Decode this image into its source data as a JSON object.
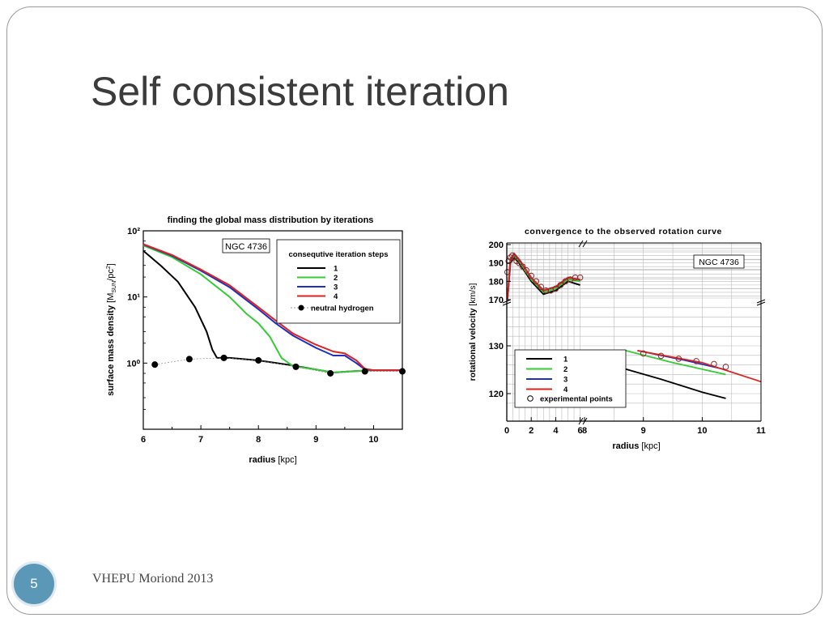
{
  "slide": {
    "title": "Self consistent iteration",
    "footer": "VHEPU Moriond 2013",
    "page_number": "5",
    "accent_color": "#5b98b8"
  },
  "chart_data": [
    {
      "type": "line",
      "title": "finding the global mass distribution by iterations",
      "xlabel": "radius [kpc]",
      "ylabel": "surface mass density [M_SUN/pc^2]",
      "annotation": "NGC 4736",
      "legend_title": "consequtive iteration steps",
      "legend_position": "top-right",
      "xlim": [
        6,
        10.5
      ],
      "ylim": [
        0.1,
        100
      ],
      "yscale": "log",
      "x_ticks": [
        "6",
        "7",
        "8",
        "9",
        "10"
      ],
      "y_ticks": [
        "10⁰",
        "10¹",
        "10²"
      ],
      "series": [
        {
          "name": "1",
          "color": "#000000",
          "x": [
            6.0,
            6.3,
            6.6,
            6.9,
            7.1,
            7.2,
            7.28,
            7.5,
            8.0,
            8.5,
            9.0,
            9.3,
            9.6,
            10.0,
            10.5
          ],
          "y": [
            50,
            30,
            17,
            7,
            3,
            1.6,
            1.2,
            1.2,
            1.1,
            0.95,
            0.8,
            0.72,
            0.75,
            0.78,
            0.78
          ]
        },
        {
          "name": "2",
          "color": "#33cc33",
          "x": [
            6.0,
            6.5,
            7.0,
            7.5,
            7.8,
            8.0,
            8.2,
            8.4,
            8.6,
            9.0,
            9.3,
            9.6,
            10.0,
            10.5
          ],
          "y": [
            60,
            40,
            22,
            10,
            5.5,
            4,
            2.5,
            1.2,
            0.9,
            0.8,
            0.72,
            0.75,
            0.78,
            0.78
          ]
        },
        {
          "name": "3",
          "color": "#1f2fbf",
          "x": [
            6.0,
            6.5,
            7.0,
            7.5,
            8.0,
            8.3,
            8.6,
            9.0,
            9.3,
            9.5,
            9.7,
            9.85,
            10.0,
            10.5
          ],
          "y": [
            62,
            42,
            25,
            14,
            6.5,
            4,
            2.6,
            1.7,
            1.3,
            1.3,
            1.0,
            0.8,
            0.78,
            0.78
          ]
        },
        {
          "name": "4",
          "color": "#dd2222",
          "x": [
            6.0,
            6.5,
            7.0,
            7.5,
            8.0,
            8.3,
            8.6,
            9.0,
            9.3,
            9.5,
            9.7,
            9.85,
            10.0,
            10.5
          ],
          "y": [
            63,
            43,
            26,
            15,
            7,
            4.4,
            2.8,
            1.9,
            1.5,
            1.4,
            1.1,
            0.82,
            0.78,
            0.78
          ]
        }
      ],
      "points": {
        "name": "neutral hydrogen",
        "color": "#000000",
        "x": [
          6.2,
          6.8,
          7.4,
          8.0,
          8.65,
          9.25,
          9.85,
          10.5
        ],
        "y": [
          0.95,
          1.15,
          1.2,
          1.1,
          0.88,
          0.7,
          0.75,
          0.75
        ]
      }
    },
    {
      "type": "line",
      "title": "convergence to the observed rotation curve",
      "xlabel": "radius [kpc]",
      "ylabel": "rotational velocity [km/s]",
      "annotation": "NGC 4736",
      "legend_position": "bottom-left",
      "xlim": [
        0,
        11
      ],
      "x_ticks": [
        "0",
        "2",
        "4",
        "6",
        "8",
        "9",
        "10",
        "11"
      ],
      "y_ticks": [
        "170",
        "180",
        "190",
        "200",
        "120",
        "130"
      ],
      "axis_breaks": "x axis broken at 8; y axis broken at 170",
      "series": [
        {
          "name": "1",
          "color": "#000000",
          "x": [
            0.05,
            0.3,
            0.6,
            1.0,
            1.5,
            2.0,
            3.0,
            4.0,
            5.0,
            6.0,
            8.0,
            8.6,
            9.3,
            10.0,
            10.4
          ],
          "y": [
            170,
            190,
            193,
            190,
            185,
            180,
            173,
            175,
            180,
            178,
            129,
            125.5,
            123,
            120.3,
            119
          ]
        },
        {
          "name": "2",
          "color": "#33cc33",
          "x": [
            0.05,
            0.3,
            0.6,
            1.0,
            1.5,
            2.0,
            3.0,
            4.0,
            5.0,
            6.0,
            8.7,
            9.5,
            10.4
          ],
          "y": [
            170,
            191,
            194,
            191,
            186,
            181,
            174,
            176,
            181,
            180,
            129,
            126.5,
            124
          ]
        },
        {
          "name": "3",
          "color": "#1f2fbf",
          "x": [
            0.05,
            0.3,
            0.6,
            1.0,
            1.5,
            2.0,
            3.0,
            4.0,
            5.0,
            6.0,
            8.9,
            9.7,
            10.4
          ],
          "y": [
            170,
            192,
            195,
            192,
            187,
            182,
            175,
            177,
            182,
            181,
            129,
            127,
            125
          ]
        },
        {
          "name": "4",
          "color": "#dd2222",
          "x": [
            0.05,
            0.3,
            0.6,
            1.0,
            1.5,
            2.0,
            3.0,
            4.0,
            5.0,
            6.0,
            8.9,
            10.0,
            11.0
          ],
          "y": [
            170,
            192,
            195,
            192,
            187,
            182,
            175,
            177,
            182,
            181,
            129,
            126.5,
            122.5
          ]
        }
      ],
      "points": {
        "name": "experimental points",
        "color": "#8a2b2b",
        "x": [
          0.05,
          0.15,
          0.3,
          0.45,
          0.6,
          0.8,
          1.0,
          1.3,
          1.6,
          2.0,
          2.4,
          2.8,
          3.2,
          3.6,
          4.0,
          4.4,
          4.8,
          5.2,
          5.6,
          6.0,
          9.0,
          9.3,
          9.6,
          9.9,
          10.2,
          10.4
        ],
        "y": [
          185,
          191,
          193,
          194,
          193,
          191,
          190,
          188,
          186,
          183,
          180,
          177,
          175,
          175,
          176,
          178,
          180,
          181,
          182,
          182,
          128.4,
          127.9,
          127.3,
          126.8,
          126.2,
          125.6
        ]
      }
    }
  ]
}
